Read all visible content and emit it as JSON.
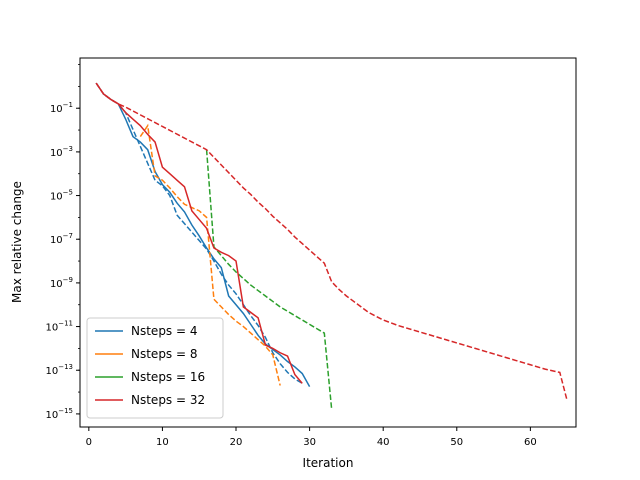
{
  "chart_data": {
    "type": "line",
    "title": "",
    "xlabel": "Iteration",
    "ylabel": "Max relative change",
    "xlim": [
      -1.2,
      66.2
    ],
    "ylim": [
      -15.6,
      1.3
    ],
    "yscale": "log",
    "grid": false,
    "legend_position": "lower-left",
    "x_ticks": [
      0,
      10,
      20,
      30,
      40,
      50,
      60
    ],
    "y_ticks": [
      {
        "exp": -1,
        "label": "−1"
      },
      {
        "exp": -3,
        "label": "−3"
      },
      {
        "exp": -5,
        "label": "−5"
      },
      {
        "exp": -7,
        "label": "−7"
      },
      {
        "exp": -9,
        "label": "−9"
      },
      {
        "exp": -11,
        "label": "−11"
      },
      {
        "exp": -13,
        "label": "−13"
      },
      {
        "exp": -15,
        "label": "−15"
      }
    ],
    "y_tick_base": "10",
    "series": [
      {
        "name": "Nsteps = 4",
        "color": "#1f77b4",
        "solid": [
          [
            1,
            0.15
          ],
          [
            2,
            -0.35
          ],
          [
            3,
            -0.6
          ],
          [
            4,
            -0.8
          ],
          [
            5,
            -1.5
          ],
          [
            6,
            -2.3
          ],
          [
            7,
            -2.55
          ],
          [
            8,
            -2.9
          ],
          [
            9,
            -3.9
          ],
          [
            10,
            -4.5
          ],
          [
            11,
            -4.85
          ],
          [
            12,
            -5.35
          ],
          [
            13,
            -5.75
          ],
          [
            14,
            -6.35
          ],
          [
            15,
            -6.85
          ],
          [
            16,
            -7.4
          ],
          [
            17,
            -7.9
          ],
          [
            18,
            -8.3
          ],
          [
            19,
            -9.6
          ],
          [
            20,
            -10.0
          ],
          [
            21,
            -10.4
          ],
          [
            22,
            -10.9
          ],
          [
            23,
            -11.4
          ],
          [
            24,
            -11.8
          ],
          [
            25,
            -12.05
          ],
          [
            26,
            -12.3
          ],
          [
            27,
            -12.6
          ],
          [
            28,
            -12.85
          ],
          [
            29,
            -13.15
          ],
          [
            30,
            -13.75
          ]
        ],
        "dashed": [
          [
            1,
            0.15
          ],
          [
            2,
            -0.35
          ],
          [
            3,
            -0.6
          ],
          [
            4,
            -0.8
          ],
          [
            5,
            -1.2
          ],
          [
            9,
            -4.3
          ],
          [
            10,
            -4.55
          ],
          [
            11,
            -5.0
          ],
          [
            12,
            -5.9
          ],
          [
            16,
            -7.45
          ],
          [
            17,
            -8.0
          ],
          [
            18,
            -8.6
          ],
          [
            19,
            -9.1
          ],
          [
            20,
            -9.5
          ],
          [
            21,
            -10.0
          ],
          [
            22,
            -10.5
          ],
          [
            23,
            -10.95
          ],
          [
            24,
            -11.5
          ],
          [
            25,
            -12.2
          ],
          [
            26,
            -12.7
          ],
          [
            27,
            -13.1
          ],
          [
            28,
            -13.4
          ],
          [
            29,
            -13.6
          ]
        ]
      },
      {
        "name": "Nsteps = 8",
        "color": "#ff7f0e",
        "solid": [],
        "dashed": [
          [
            7,
            -2.3
          ],
          [
            8,
            -1.8
          ],
          [
            9,
            -4.1
          ],
          [
            10,
            -4.3
          ],
          [
            11,
            -4.65
          ],
          [
            12,
            -5.05
          ],
          [
            13,
            -5.4
          ],
          [
            14,
            -5.55
          ],
          [
            15,
            -5.7
          ],
          [
            16,
            -6.0
          ],
          [
            17,
            -9.75
          ],
          [
            18,
            -10.1
          ],
          [
            19,
            -10.45
          ],
          [
            20,
            -10.75
          ],
          [
            21,
            -11.0
          ],
          [
            22,
            -11.3
          ],
          [
            23,
            -11.6
          ],
          [
            24,
            -11.9
          ],
          [
            25,
            -12.3
          ],
          [
            26,
            -13.7
          ]
        ]
      },
      {
        "name": "Nsteps = 16",
        "color": "#2ca02c",
        "solid": [],
        "dashed": [
          [
            16,
            -2.9
          ],
          [
            17,
            -7.35
          ],
          [
            18,
            -7.75
          ],
          [
            19,
            -8.15
          ],
          [
            20,
            -8.5
          ],
          [
            21,
            -8.8
          ],
          [
            22,
            -9.1
          ],
          [
            23,
            -9.35
          ],
          [
            24,
            -9.6
          ],
          [
            25,
            -9.85
          ],
          [
            26,
            -10.1
          ],
          [
            27,
            -10.3
          ],
          [
            28,
            -10.5
          ],
          [
            29,
            -10.7
          ],
          [
            30,
            -10.9
          ],
          [
            31,
            -11.1
          ],
          [
            32,
            -11.3
          ],
          [
            33,
            -14.8
          ]
        ]
      },
      {
        "name": "Nsteps = 32",
        "color": "#d62728",
        "solid": [
          [
            1,
            0.15
          ],
          [
            2,
            -0.35
          ],
          [
            3,
            -0.6
          ],
          [
            4,
            -0.8
          ],
          [
            5,
            -1.2
          ],
          [
            6,
            -1.5
          ],
          [
            7,
            -1.8
          ],
          [
            8,
            -2.2
          ],
          [
            9,
            -2.55
          ],
          [
            10,
            -3.7
          ],
          [
            11,
            -4.0
          ],
          [
            12,
            -4.3
          ],
          [
            13,
            -4.6
          ],
          [
            14,
            -5.7
          ],
          [
            15,
            -6.1
          ],
          [
            16,
            -6.5
          ],
          [
            17,
            -7.4
          ],
          [
            18,
            -7.6
          ],
          [
            19,
            -7.75
          ],
          [
            20,
            -8.0
          ],
          [
            21,
            -10.1
          ],
          [
            22,
            -10.35
          ],
          [
            23,
            -10.6
          ],
          [
            24,
            -11.85
          ],
          [
            25,
            -12.0
          ],
          [
            26,
            -12.2
          ],
          [
            27,
            -12.35
          ],
          [
            28,
            -13.2
          ],
          [
            29,
            -13.6
          ]
        ],
        "dashed": [
          [
            1,
            0.15
          ],
          [
            2,
            -0.35
          ],
          [
            3,
            -0.6
          ],
          [
            4,
            -0.8
          ],
          [
            5,
            -0.95
          ],
          [
            16,
            -2.9
          ],
          [
            17,
            -3.25
          ],
          [
            18,
            -3.6
          ],
          [
            19,
            -3.95
          ],
          [
            20,
            -4.3
          ],
          [
            21,
            -4.65
          ],
          [
            22,
            -4.95
          ],
          [
            23,
            -5.3
          ],
          [
            24,
            -5.6
          ],
          [
            25,
            -5.95
          ],
          [
            26,
            -6.25
          ],
          [
            27,
            -6.55
          ],
          [
            28,
            -6.9
          ],
          [
            29,
            -7.2
          ],
          [
            30,
            -7.5
          ],
          [
            31,
            -7.8
          ],
          [
            32,
            -8.1
          ],
          [
            33,
            -8.95
          ],
          [
            34,
            -9.3
          ],
          [
            35,
            -9.6
          ],
          [
            36,
            -9.85
          ],
          [
            37,
            -10.1
          ],
          [
            38,
            -10.35
          ],
          [
            40,
            -10.7
          ],
          [
            42,
            -10.95
          ],
          [
            44,
            -11.15
          ],
          [
            46,
            -11.35
          ],
          [
            48,
            -11.55
          ],
          [
            50,
            -11.75
          ],
          [
            52,
            -11.95
          ],
          [
            54,
            -12.15
          ],
          [
            56,
            -12.35
          ],
          [
            58,
            -12.55
          ],
          [
            60,
            -12.75
          ],
          [
            62,
            -12.95
          ],
          [
            64,
            -13.1
          ],
          [
            65,
            -14.4
          ]
        ]
      }
    ]
  }
}
